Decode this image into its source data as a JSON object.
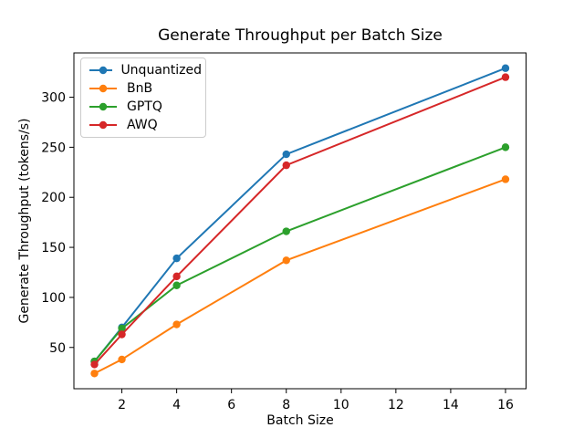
{
  "chart_data": {
    "type": "line",
    "title": "Generate Throughput per Batch Size",
    "xlabel": "Batch Size",
    "ylabel": "Generate Throughput (tokens/s)",
    "x": [
      1,
      2,
      4,
      8,
      16
    ],
    "series": [
      {
        "name": "Unquantized",
        "color": "#1f77b4",
        "values": [
          36,
          70,
          139,
          243,
          329
        ]
      },
      {
        "name": "BnB",
        "color": "#ff7f0e",
        "values": [
          24,
          38,
          73,
          137,
          218
        ]
      },
      {
        "name": "GPTQ",
        "color": "#2ca02c",
        "values": [
          36,
          69,
          112,
          166,
          250
        ]
      },
      {
        "name": "AWQ",
        "color": "#d62728",
        "values": [
          33,
          63,
          121,
          232,
          320
        ]
      }
    ],
    "xticks": [
      2,
      4,
      6,
      8,
      10,
      12,
      14,
      16
    ],
    "yticks": [
      50,
      100,
      150,
      200,
      250,
      300
    ],
    "xlim": [
      0.25,
      16.75
    ],
    "ylim": [
      8.75,
      344.25
    ],
    "grid": false,
    "legend_position": "upper left",
    "marker": "circle",
    "axis_color": "#000000",
    "background_color": "#ffffff"
  }
}
